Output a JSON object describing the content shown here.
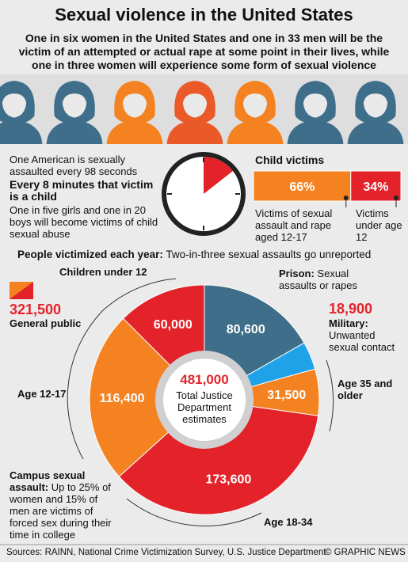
{
  "header": {
    "title": "Sexual violence in the United States",
    "subtitle": "One in six women in the United States and one in 33 men will be the victim of an attempted or actual rape at some point in their lives, while one in three women will experience some form of sexual violence"
  },
  "facts": {
    "line1": "One American is sexually assaulted every 98 seconds",
    "line2": "Every 8 minutes that victim is a child",
    "line3": "One in five girls and one in 20 boys will become victims of child sexual abuse"
  },
  "section": {
    "bold": "People victimized each year:",
    "rest": "Two-in-three sexual assaults go unreported"
  },
  "general_public": {
    "value": "321,500",
    "label": "General public"
  },
  "annotations": {
    "prison": "Sexual assaults or rapes",
    "military": "Unwanted sexual contact",
    "campus_bold": "Campus sexual assault:",
    "campus_rest": "Up to 25% of women and 15% of men are victims of forced sex during their time in college"
  },
  "center": {
    "value": "481,000",
    "label": "Total Justice Department estimates"
  },
  "footer": {
    "sources": "Sources: RAINN, National Crime Victimization Survey, U.S. Justice Department",
    "credit": "© GRAPHIC NEWS"
  },
  "chart_data": [
    {
      "type": "pie",
      "donut": true,
      "categories": [
        "Prison:",
        "Military:",
        "Age 35 and older",
        "Age 18-34",
        "Age 12-17",
        "Children under 12"
      ],
      "values": [
        80600,
        18900,
        31500,
        173600,
        116400,
        60000
      ],
      "value_labels": [
        "80,600",
        "18,900",
        "31,500",
        "173,600",
        "116,400",
        "60,000"
      ],
      "colors": [
        "#3e6e8a",
        "#1fa2e8",
        "#f58220",
        "#e3222a",
        "#f58220",
        "#e3222a"
      ]
    },
    {
      "type": "bar",
      "title": "Child victims",
      "stacked": true,
      "orientation": "horizontal",
      "categories": [
        "Victims of sexual assault and rape aged 12-17",
        "Victims under age 12"
      ],
      "values": [
        66,
        34
      ],
      "value_labels": [
        "66%",
        "34%"
      ],
      "colors": [
        "#f58220",
        "#e3222a"
      ]
    }
  ]
}
